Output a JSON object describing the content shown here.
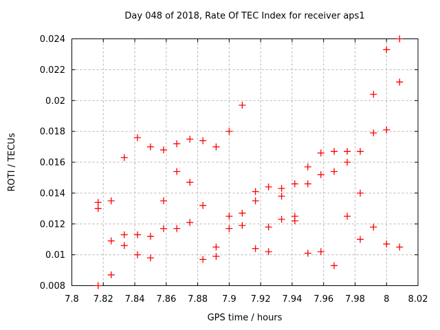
{
  "title": "Day 048 of 2018, Rate Of TEC Index for receiver aps1",
  "chart_data": {
    "type": "scatter",
    "title": "Day 048 of 2018, Rate Of TEC Index for receiver aps1",
    "xlabel": "GPS time / hours",
    "ylabel": "ROTI / TECUs",
    "xlim": [
      7.8,
      8.02
    ],
    "ylim": [
      0.008,
      0.024
    ],
    "xticks": [
      7.8,
      7.82,
      7.84,
      7.86,
      7.88,
      7.9,
      7.92,
      7.94,
      7.96,
      7.98,
      8.0,
      8.02
    ],
    "xtick_labels": [
      "7.8",
      "7.82",
      "7.84",
      "7.86",
      "7.88",
      "7.9",
      "7.92",
      "7.94",
      "7.96",
      "7.98",
      "8",
      "8.02"
    ],
    "yticks": [
      0.008,
      0.01,
      0.012,
      0.014,
      0.016,
      0.018,
      0.02,
      0.022,
      0.024
    ],
    "ytick_labels": [
      "0.008",
      "0.01",
      "0.012",
      "0.014",
      "0.016",
      "0.018",
      "0.02",
      "0.022",
      "0.024"
    ],
    "grid": true,
    "legend": "none",
    "marker": "plus",
    "marker_color": "#ff0000",
    "grid_color": "#b4b4b4",
    "frame_color": "#000000",
    "points": [
      [
        7.8167,
        0.0134
      ],
      [
        7.8167,
        0.013
      ],
      [
        7.8167,
        0.008
      ],
      [
        7.825,
        0.0135
      ],
      [
        7.825,
        0.0109
      ],
      [
        7.825,
        0.0087
      ],
      [
        7.8333,
        0.0163
      ],
      [
        7.8333,
        0.0113
      ],
      [
        7.8333,
        0.0106
      ],
      [
        7.8417,
        0.0176
      ],
      [
        7.8417,
        0.0113
      ],
      [
        7.8417,
        0.01
      ],
      [
        7.85,
        0.017
      ],
      [
        7.85,
        0.0112
      ],
      [
        7.85,
        0.0098
      ],
      [
        7.8583,
        0.0168
      ],
      [
        7.8583,
        0.0135
      ],
      [
        7.8583,
        0.0117
      ],
      [
        7.8667,
        0.0172
      ],
      [
        7.8667,
        0.0154
      ],
      [
        7.8667,
        0.0117
      ],
      [
        7.875,
        0.0175
      ],
      [
        7.875,
        0.0147
      ],
      [
        7.875,
        0.0121
      ],
      [
        7.8833,
        0.0174
      ],
      [
        7.8833,
        0.0132
      ],
      [
        7.8833,
        0.0097
      ],
      [
        7.8917,
        0.017
      ],
      [
        7.8917,
        0.0105
      ],
      [
        7.8917,
        0.0099
      ],
      [
        7.9,
        0.018
      ],
      [
        7.9,
        0.0125
      ],
      [
        7.9,
        0.0117
      ],
      [
        7.9083,
        0.0197
      ],
      [
        7.9083,
        0.0127
      ],
      [
        7.9083,
        0.0119
      ],
      [
        7.9167,
        0.0141
      ],
      [
        7.9167,
        0.0135
      ],
      [
        7.9167,
        0.0104
      ],
      [
        7.925,
        0.0144
      ],
      [
        7.925,
        0.0118
      ],
      [
        7.925,
        0.0102
      ],
      [
        7.9333,
        0.0143
      ],
      [
        7.9333,
        0.0138
      ],
      [
        7.9333,
        0.0123
      ],
      [
        7.9417,
        0.0146
      ],
      [
        7.9417,
        0.0125
      ],
      [
        7.9417,
        0.0122
      ],
      [
        7.95,
        0.0157
      ],
      [
        7.95,
        0.0146
      ],
      [
        7.95,
        0.0101
      ],
      [
        7.9583,
        0.0166
      ],
      [
        7.9583,
        0.0152
      ],
      [
        7.9583,
        0.0102
      ],
      [
        7.9667,
        0.0167
      ],
      [
        7.9667,
        0.0154
      ],
      [
        7.9667,
        0.0093
      ],
      [
        7.975,
        0.0167
      ],
      [
        7.975,
        0.016
      ],
      [
        7.975,
        0.0125
      ],
      [
        7.9833,
        0.0167
      ],
      [
        7.9833,
        0.014
      ],
      [
        7.9833,
        0.011
      ],
      [
        7.9917,
        0.0204
      ],
      [
        7.9917,
        0.0179
      ],
      [
        7.9917,
        0.0118
      ],
      [
        8.0,
        0.0233
      ],
      [
        8.0,
        0.0181
      ],
      [
        8.0,
        0.0107
      ],
      [
        8.0083,
        0.024
      ],
      [
        8.0083,
        0.0212
      ],
      [
        8.0083,
        0.0105
      ]
    ]
  }
}
